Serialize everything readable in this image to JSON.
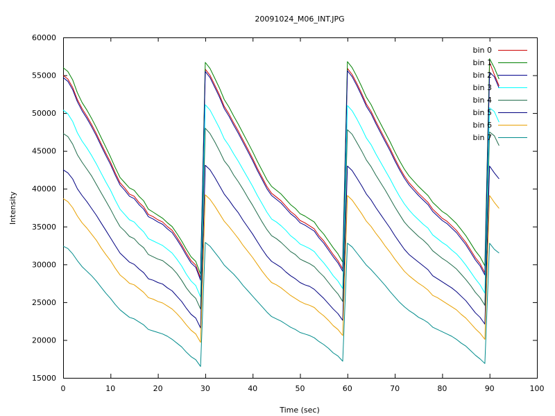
{
  "chart_data": {
    "type": "line",
    "title": "20091024_M06_INT.JPG",
    "xlabel": "Time (sec)",
    "ylabel": "Intensity",
    "xlim": [
      0,
      100
    ],
    "ylim": [
      15000,
      60000
    ],
    "x_ticks": [
      0,
      10,
      20,
      30,
      40,
      50,
      60,
      70,
      80,
      90,
      100
    ],
    "y_ticks": [
      15000,
      20000,
      25000,
      30000,
      35000,
      40000,
      45000,
      50000,
      55000,
      60000
    ],
    "grid": false,
    "legend_position": "top-right",
    "x": [
      0,
      1,
      2,
      3,
      4,
      5,
      6,
      7,
      8,
      9,
      10,
      11,
      12,
      13,
      14,
      15,
      16,
      17,
      18,
      19,
      20,
      21,
      22,
      23,
      24,
      25,
      26,
      27,
      28,
      29,
      30,
      31,
      32,
      33,
      34,
      35,
      36,
      37,
      38,
      39,
      40,
      41,
      42,
      43,
      44,
      45,
      46,
      47,
      48,
      49,
      50,
      51,
      52,
      53,
      54,
      55,
      56,
      57,
      58,
      59,
      60,
      61,
      62,
      63,
      64,
      65,
      66,
      67,
      68,
      69,
      70,
      71,
      72,
      73,
      74,
      75,
      76,
      77,
      78,
      79,
      80,
      81,
      82,
      83,
      84,
      85,
      86,
      87,
      88,
      89,
      90,
      91,
      92
    ],
    "series": [
      {
        "name": "bin 0",
        "color": "#cc0000",
        "values": [
          55000,
          54500,
          53400,
          51800,
          50600,
          49600,
          48500,
          47300,
          46000,
          44700,
          43500,
          42100,
          40800,
          40100,
          39300,
          39000,
          38200,
          37600,
          36600,
          36300,
          35900,
          35600,
          35000,
          34500,
          33600,
          32600,
          31500,
          30500,
          29900,
          28200,
          55800,
          55000,
          53700,
          52400,
          50900,
          49900,
          48700,
          47600,
          46400,
          45200,
          44000,
          42700,
          41500,
          40300,
          39400,
          38900,
          38400,
          37700,
          37000,
          36500,
          35800,
          35500,
          35100,
          34700,
          33800,
          33100,
          32200,
          31300,
          30500,
          29400,
          55900,
          55100,
          53900,
          52600,
          51200,
          50200,
          48900,
          47700,
          46500,
          45300,
          44000,
          42800,
          41700,
          40800,
          40100,
          39400,
          38800,
          38200,
          37300,
          36700,
          36100,
          35700,
          35100,
          34500,
          33700,
          32900,
          31900,
          30900,
          30100,
          28900,
          56700,
          55100,
          53600
        ]
      },
      {
        "name": "bin 1",
        "color": "#008000",
        "values": [
          56000,
          55500,
          54400,
          52700,
          51400,
          50400,
          49300,
          48100,
          46800,
          45500,
          44200,
          42800,
          41500,
          40800,
          40100,
          39800,
          39000,
          38400,
          37300,
          36900,
          36500,
          36100,
          35500,
          35000,
          34100,
          33100,
          32000,
          31000,
          30400,
          28700,
          56700,
          55900,
          54600,
          53300,
          51800,
          50800,
          49600,
          48500,
          47300,
          46100,
          44900,
          43600,
          42400,
          41200,
          40300,
          39800,
          39300,
          38600,
          37900,
          37400,
          36700,
          36400,
          36000,
          35600,
          34700,
          34000,
          33100,
          32200,
          31400,
          30300,
          56800,
          56000,
          54800,
          53500,
          52100,
          51100,
          49800,
          48600,
          47400,
          46200,
          44900,
          43700,
          42600,
          41700,
          41000,
          40300,
          39700,
          39100,
          38200,
          37600,
          37000,
          36600,
          36000,
          35400,
          34600,
          33800,
          32800,
          31800,
          31000,
          29800,
          57200,
          56000,
          54500
        ]
      },
      {
        "name": "bin 2",
        "color": "#00008b",
        "values": [
          54700,
          54200,
          53100,
          51500,
          50300,
          49300,
          48200,
          47000,
          45700,
          44400,
          43200,
          41800,
          40500,
          39800,
          39000,
          38700,
          37900,
          37300,
          36300,
          36000,
          35600,
          35300,
          34700,
          34200,
          33300,
          32300,
          31200,
          30200,
          29600,
          27900,
          55500,
          54700,
          53400,
          52100,
          50600,
          49600,
          48400,
          47300,
          46100,
          44900,
          43700,
          42400,
          41200,
          40000,
          39100,
          38600,
          38100,
          37400,
          36700,
          36200,
          35500,
          35200,
          34800,
          34400,
          33500,
          32800,
          31900,
          31000,
          30200,
          29100,
          55600,
          54800,
          53600,
          52300,
          50900,
          49900,
          48600,
          47400,
          46200,
          45000,
          43700,
          42500,
          41400,
          40500,
          39800,
          39100,
          38500,
          37900,
          37000,
          36400,
          35800,
          35400,
          34800,
          34200,
          33400,
          32600,
          31600,
          30600,
          29800,
          28600,
          55400,
          54800,
          53300
        ]
      },
      {
        "name": "bin 3",
        "color": "#00ffff",
        "values": [
          50400,
          49900,
          48900,
          47400,
          46300,
          45400,
          44400,
          43300,
          42100,
          40900,
          39800,
          38500,
          37300,
          36600,
          35900,
          35600,
          34900,
          34300,
          33400,
          33100,
          32800,
          32500,
          32000,
          31500,
          30700,
          29800,
          28700,
          27800,
          27200,
          25700,
          51100,
          50400,
          49200,
          48000,
          46600,
          45700,
          44600,
          43600,
          42500,
          41400,
          40300,
          39100,
          38000,
          36900,
          36000,
          35600,
          35100,
          34500,
          33800,
          33300,
          32700,
          32400,
          32100,
          31700,
          30900,
          30200,
          29400,
          28500,
          27800,
          26800,
          51000,
          50300,
          49200,
          48000,
          46700,
          45800,
          44600,
          43500,
          42400,
          41300,
          40100,
          39000,
          38000,
          37200,
          36500,
          35900,
          35300,
          34800,
          33900,
          33400,
          32900,
          32500,
          31900,
          31400,
          30700,
          29900,
          29000,
          28100,
          27300,
          26200,
          50700,
          50200,
          48800
        ]
      },
      {
        "name": "bin 4",
        "color": "#1f6b4a",
        "values": [
          47300,
          46900,
          45900,
          44500,
          43500,
          42600,
          41700,
          40600,
          39500,
          38400,
          37300,
          36100,
          35000,
          34400,
          33700,
          33400,
          32700,
          32200,
          31300,
          31000,
          30700,
          30500,
          30000,
          29500,
          28800,
          27900,
          26900,
          26100,
          25500,
          24100,
          48000,
          47300,
          46200,
          45000,
          43700,
          42900,
          41800,
          40900,
          39900,
          38800,
          37800,
          36700,
          35600,
          34600,
          33800,
          33400,
          32900,
          32300,
          31700,
          31300,
          30700,
          30400,
          30100,
          29700,
          29000,
          28400,
          27600,
          26800,
          26100,
          25100,
          47800,
          47200,
          46100,
          45000,
          43800,
          42900,
          41800,
          40800,
          39800,
          38700,
          37600,
          36600,
          35600,
          34900,
          34300,
          33700,
          33200,
          32600,
          31800,
          31300,
          30800,
          30400,
          29900,
          29400,
          28700,
          28000,
          27200,
          26300,
          25600,
          24600,
          47500,
          47000,
          45700
        ]
      },
      {
        "name": "bin 5",
        "color": "#000080",
        "values": [
          42500,
          42100,
          41300,
          40000,
          39100,
          38300,
          37400,
          36500,
          35500,
          34500,
          33500,
          32500,
          31500,
          30900,
          30300,
          30000,
          29400,
          28900,
          28100,
          27900,
          27600,
          27400,
          26900,
          26500,
          25800,
          25100,
          24200,
          23400,
          22900,
          21600,
          43100,
          42500,
          41500,
          40400,
          39300,
          38500,
          37600,
          36800,
          35800,
          34900,
          34000,
          33000,
          32000,
          31100,
          30400,
          30000,
          29600,
          29000,
          28500,
          28100,
          27600,
          27300,
          27100,
          26700,
          26100,
          25500,
          24800,
          24100,
          23500,
          22600,
          43000,
          42400,
          41400,
          40400,
          39300,
          38500,
          37500,
          36600,
          35700,
          34800,
          33800,
          32900,
          32000,
          31300,
          30800,
          30300,
          29800,
          29300,
          28500,
          28100,
          27700,
          27300,
          26900,
          26400,
          25800,
          25200,
          24400,
          23600,
          23000,
          22100,
          43000,
          42100,
          41300
        ]
      },
      {
        "name": "bin 6",
        "color": "#e8a000",
        "values": [
          38700,
          38300,
          37500,
          36400,
          35500,
          34800,
          34000,
          33200,
          32200,
          31300,
          30500,
          29500,
          28600,
          28100,
          27500,
          27300,
          26800,
          26300,
          25600,
          25400,
          25100,
          24900,
          24500,
          24100,
          23500,
          22800,
          22000,
          21300,
          20800,
          19700,
          39200,
          38600,
          37700,
          36700,
          35700,
          35000,
          34200,
          33400,
          32500,
          31700,
          30900,
          30000,
          29100,
          28300,
          27600,
          27300,
          26900,
          26400,
          25900,
          25500,
          25100,
          24800,
          24600,
          24300,
          23700,
          23200,
          22600,
          21900,
          21400,
          20600,
          39100,
          38500,
          37600,
          36700,
          35700,
          35000,
          34100,
          33300,
          32400,
          31600,
          30700,
          29900,
          29100,
          28500,
          28000,
          27500,
          27100,
          26600,
          25900,
          25600,
          25200,
          24800,
          24400,
          24000,
          23400,
          22900,
          22200,
          21500,
          20900,
          20100,
          39100,
          38200,
          37400
        ]
      },
      {
        "name": "bin 7",
        "color": "#008b8b",
        "values": [
          32400,
          32100,
          31400,
          30500,
          29700,
          29100,
          28500,
          27800,
          27000,
          26200,
          25500,
          24700,
          24000,
          23500,
          23000,
          22800,
          22400,
          22000,
          21400,
          21200,
          21000,
          20800,
          20500,
          20100,
          19600,
          19100,
          18400,
          17800,
          17400,
          16500,
          32900,
          32400,
          31600,
          30800,
          29900,
          29300,
          28700,
          28000,
          27200,
          26500,
          25800,
          25100,
          24400,
          23700,
          23100,
          22800,
          22500,
          22100,
          21700,
          21400,
          21000,
          20800,
          20600,
          20300,
          19800,
          19400,
          18900,
          18300,
          17900,
          17200,
          32800,
          32300,
          31500,
          30700,
          29900,
          29300,
          28600,
          27900,
          27200,
          26400,
          25700,
          25000,
          24400,
          23900,
          23500,
          23000,
          22700,
          22300,
          21700,
          21400,
          21100,
          20800,
          20500,
          20100,
          19600,
          19200,
          18600,
          18000,
          17500,
          16900,
          32800,
          32000,
          31500
        ]
      }
    ]
  }
}
